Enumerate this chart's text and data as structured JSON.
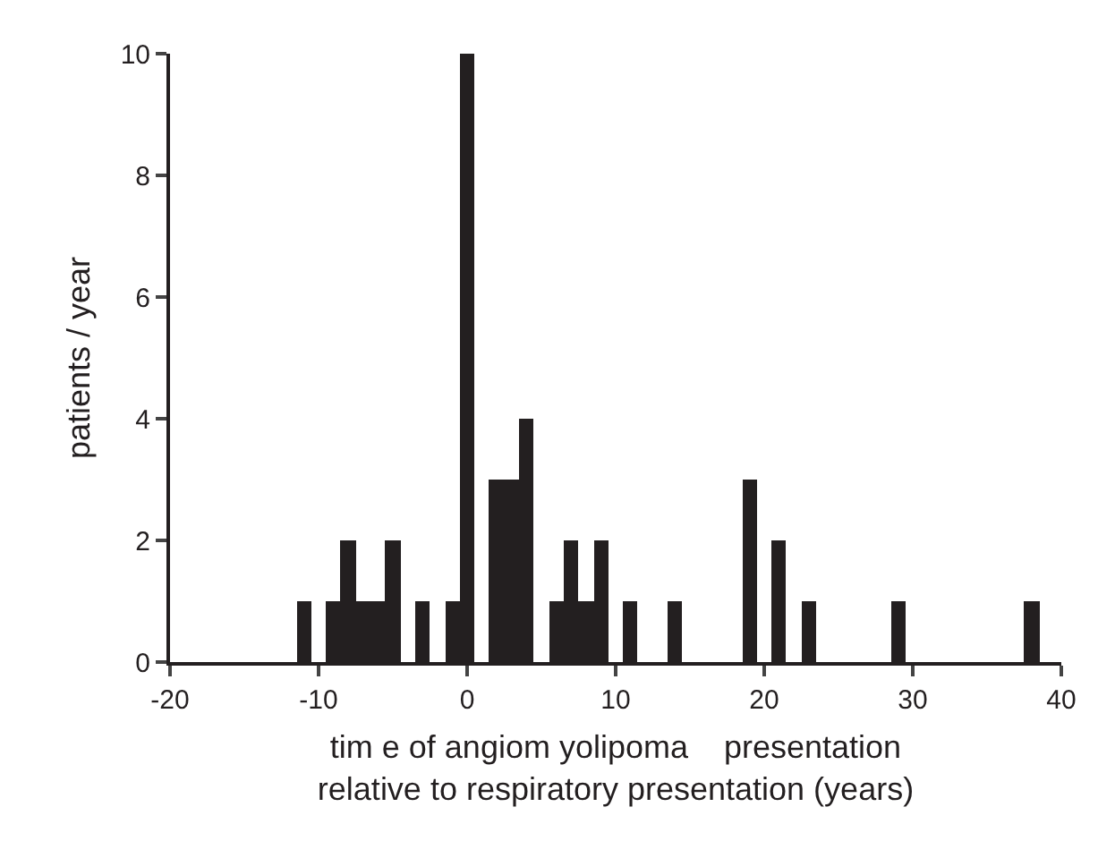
{
  "chart_data": {
    "type": "histogram",
    "xlabel": "tim e of angiom yolipoma    presentation\nrelative to respiratory presentation (years)",
    "ylabel": "patients / year",
    "bins": [
      -11.5,
      -10.5,
      -9.5,
      -8.5,
      -7.5,
      -6.5,
      -5.5,
      -4.5,
      -3.5,
      -2.5,
      -1.5,
      -0.5,
      0.5,
      1.5,
      2.5,
      3.5,
      4.5,
      5.5,
      6.5,
      7.5,
      8.5,
      9.5,
      10.5,
      11.5,
      12.5,
      13.5,
      14.5,
      15.5,
      16.5,
      17.5,
      18.5,
      19.5,
      20.5,
      21.5,
      22.5,
      23.5,
      24.5,
      25.5,
      26.5,
      27.5,
      28.5,
      29.5,
      30.5,
      31.5,
      32.5,
      33.5,
      34.5,
      35.5,
      36.5,
      37.5,
      38.5
    ],
    "values": [
      1,
      0,
      1,
      2,
      1,
      1,
      2,
      0,
      1,
      0,
      1,
      10,
      0,
      3,
      3,
      4,
      0,
      1,
      2,
      1,
      2,
      0,
      1,
      0,
      0,
      1,
      0,
      0,
      0,
      0,
      3,
      0,
      2,
      0,
      1,
      0,
      0,
      0,
      0,
      0,
      1,
      0,
      0,
      0,
      0,
      0,
      0,
      0,
      0,
      1
    ],
    "color": "#231f20",
    "xlim": [
      -20,
      40
    ],
    "xticks": [
      -20,
      -10,
      0,
      10,
      20,
      30,
      40
    ],
    "ylim": [
      0,
      10
    ],
    "yticks": [
      0,
      2,
      4,
      6,
      8,
      10
    ]
  }
}
